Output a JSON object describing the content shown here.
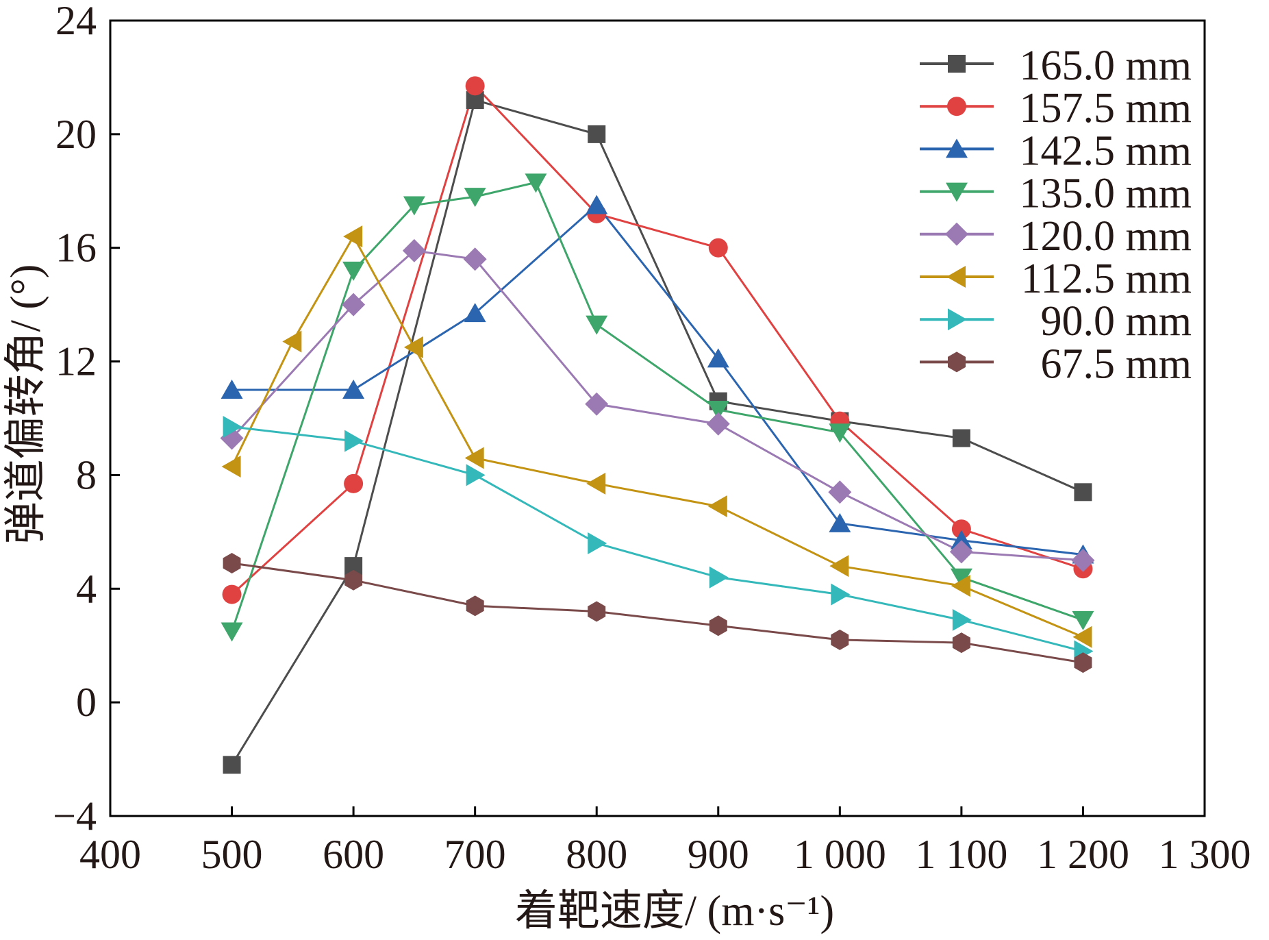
{
  "chart_data": {
    "type": "line",
    "title": "",
    "xlabel": "着靶速度/ (m·s⁻¹)",
    "ylabel": "弹道偏转角/ (°)",
    "xlim": [
      400,
      1300
    ],
    "ylim": [
      -4,
      24
    ],
    "xticks": [
      400,
      500,
      600,
      700,
      800,
      900,
      1000,
      1100,
      1200,
      1300
    ],
    "xtick_labels": [
      "400",
      "500",
      "600",
      "700",
      "800",
      "900",
      "1 000",
      "1 100",
      "1 200",
      "1 300"
    ],
    "yticks": [
      -4,
      0,
      4,
      8,
      12,
      16,
      20,
      24
    ],
    "ytick_labels": [
      "−4",
      "0",
      "4",
      "8",
      "12",
      "16",
      "20",
      "24"
    ],
    "grid": false,
    "legend_position": "top-right",
    "series": [
      {
        "name": "165.0 mm",
        "color": "#4d4d4d",
        "marker": "square",
        "x": [
          500,
          600,
          700,
          800,
          900,
          1000,
          1100,
          1200
        ],
        "y": [
          -2.2,
          4.8,
          21.2,
          20.0,
          10.6,
          9.9,
          9.3,
          7.4
        ]
      },
      {
        "name": "157.5 mm",
        "color": "#e04242",
        "marker": "circle",
        "x": [
          500,
          600,
          700,
          800,
          900,
          1000,
          1100,
          1200
        ],
        "y": [
          3.8,
          7.7,
          21.7,
          17.2,
          16.0,
          9.9,
          6.1,
          4.7
        ]
      },
      {
        "name": "142.5 mm",
        "color": "#2b65b0",
        "marker": "triangle-up",
        "x": [
          500,
          600,
          700,
          800,
          900,
          1000,
          1100,
          1200
        ],
        "y": [
          11.0,
          11.0,
          13.7,
          17.5,
          12.1,
          6.3,
          5.7,
          5.2
        ]
      },
      {
        "name": "135.0 mm",
        "color": "#3ea66a",
        "marker": "triangle-down",
        "x": [
          500,
          600,
          650,
          700,
          750,
          800,
          900,
          1000,
          1100,
          1200
        ],
        "y": [
          2.5,
          15.2,
          17.5,
          17.8,
          18.3,
          13.3,
          10.3,
          9.5,
          4.4,
          2.9
        ]
      },
      {
        "name": "120.0 mm",
        "color": "#9b79b3",
        "marker": "diamond",
        "x": [
          500,
          600,
          650,
          700,
          800,
          900,
          1000,
          1100,
          1200
        ],
        "y": [
          9.3,
          14.0,
          15.9,
          15.6,
          10.5,
          9.8,
          7.4,
          5.3,
          5.0
        ]
      },
      {
        "name": "112.5 mm",
        "color": "#c39313",
        "marker": "triangle-left",
        "x": [
          500,
          550,
          600,
          650,
          700,
          800,
          900,
          1000,
          1100,
          1200
        ],
        "y": [
          8.3,
          12.7,
          16.4,
          12.5,
          8.6,
          7.7,
          6.9,
          4.8,
          4.1,
          2.3
        ]
      },
      {
        "name": "90.0 mm",
        "color": "#35b8ba",
        "marker": "triangle-right",
        "x": [
          500,
          600,
          700,
          800,
          900,
          1000,
          1100,
          1200
        ],
        "y": [
          9.7,
          9.2,
          8.0,
          5.6,
          4.4,
          3.8,
          2.9,
          1.8
        ]
      },
      {
        "name": "67.5 mm",
        "color": "#7a4a4a",
        "marker": "hexagon",
        "x": [
          500,
          600,
          700,
          800,
          900,
          1000,
          1100,
          1200
        ],
        "y": [
          4.9,
          4.3,
          3.4,
          3.2,
          2.7,
          2.2,
          2.1,
          1.4
        ]
      }
    ]
  }
}
